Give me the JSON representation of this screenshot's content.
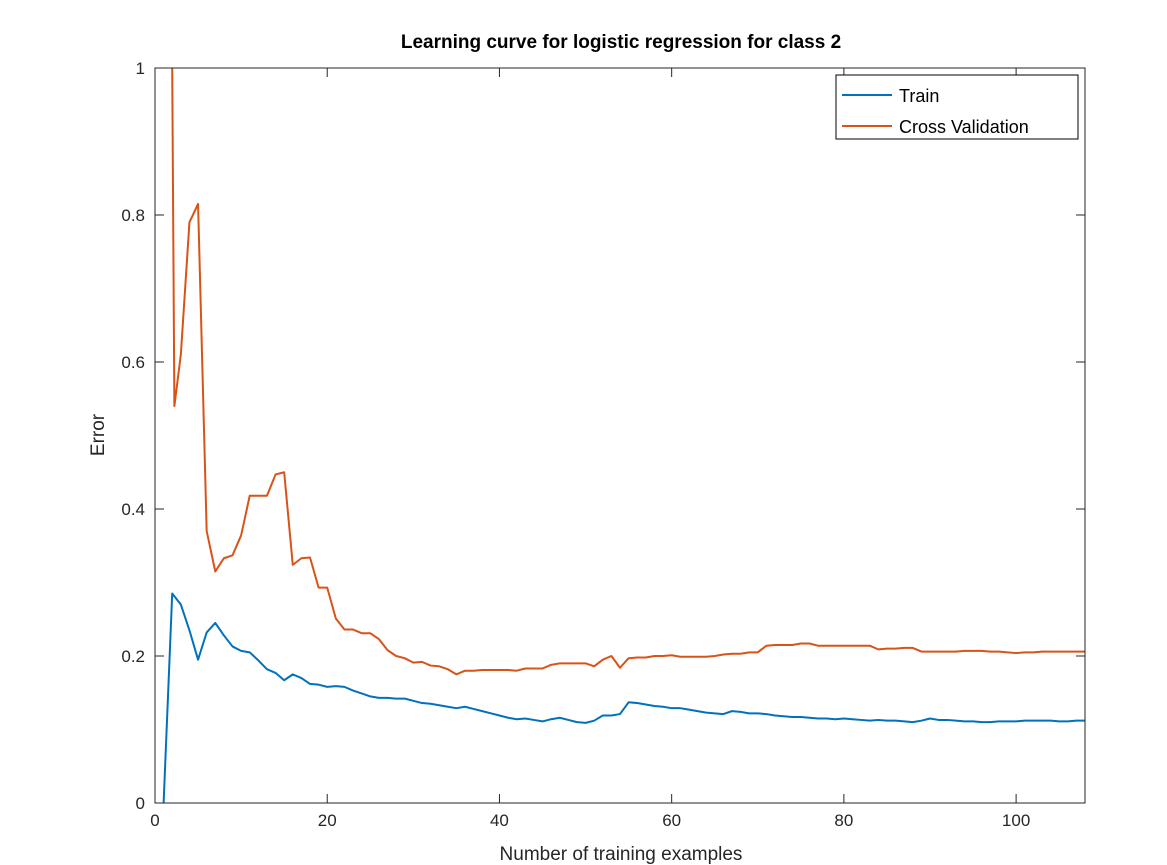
{
  "chart_data": {
    "type": "line",
    "title": "Learning curve for logistic regression for class 2",
    "xlabel": "Number of training examples",
    "ylabel": "Error",
    "xlim": [
      0,
      108
    ],
    "ylim": [
      0,
      1
    ],
    "xticks": [
      0,
      20,
      40,
      60,
      80,
      100
    ],
    "yticks": [
      0,
      0.2,
      0.4,
      0.6,
      0.8,
      1
    ],
    "ytick_labels": [
      "0",
      "0.2",
      "0.4",
      "0.6",
      "0.8",
      "1"
    ],
    "grid": false,
    "legend_position": "top-right",
    "series": [
      {
        "name": "Train",
        "color": "#0072BD",
        "x": [
          1,
          2,
          3,
          4,
          5,
          6,
          7,
          8,
          9,
          10,
          11,
          12,
          13,
          14,
          15,
          16,
          17,
          18,
          19,
          20,
          21,
          22,
          23,
          24,
          25,
          26,
          27,
          28,
          29,
          30,
          31,
          32,
          33,
          34,
          35,
          36,
          37,
          38,
          39,
          40,
          41,
          42,
          43,
          44,
          45,
          46,
          47,
          48,
          49,
          50,
          51,
          52,
          53,
          54,
          55,
          56,
          57,
          58,
          59,
          60,
          61,
          62,
          63,
          64,
          65,
          66,
          67,
          68,
          69,
          70,
          71,
          72,
          73,
          74,
          75,
          76,
          77,
          78,
          79,
          80,
          81,
          82,
          83,
          84,
          85,
          86,
          87,
          88,
          89,
          90,
          91,
          92,
          93,
          94,
          95,
          96,
          97,
          98,
          99,
          100,
          101,
          102,
          103,
          104,
          105,
          106,
          107,
          108
        ],
        "y": [
          0,
          0.285,
          0.27,
          0.235,
          0.195,
          0.232,
          0.245,
          0.228,
          0.213,
          0.207,
          0.205,
          0.194,
          0.182,
          0.177,
          0.167,
          0.175,
          0.17,
          0.162,
          0.161,
          0.158,
          0.159,
          0.158,
          0.153,
          0.149,
          0.145,
          0.143,
          0.143,
          0.142,
          0.142,
          0.139,
          0.136,
          0.135,
          0.133,
          0.131,
          0.129,
          0.131,
          0.128,
          0.125,
          0.122,
          0.119,
          0.116,
          0.114,
          0.115,
          0.113,
          0.111,
          0.114,
          0.116,
          0.113,
          0.11,
          0.109,
          0.112,
          0.119,
          0.119,
          0.121,
          0.137,
          0.136,
          0.134,
          0.132,
          0.131,
          0.129,
          0.129,
          0.127,
          0.125,
          0.123,
          0.122,
          0.121,
          0.125,
          0.124,
          0.122,
          0.122,
          0.121,
          0.119,
          0.118,
          0.117,
          0.117,
          0.116,
          0.115,
          0.115,
          0.114,
          0.115,
          0.114,
          0.113,
          0.112,
          0.113,
          0.112,
          0.112,
          0.111,
          0.11,
          0.112,
          0.115,
          0.113,
          0.113,
          0.112,
          0.111,
          0.111,
          0.11,
          0.11,
          0.111,
          0.111,
          0.111,
          0.112,
          0.112,
          0.112,
          0.112,
          0.111,
          0.111,
          0.112,
          0.112
        ]
      },
      {
        "name": "Cross Validation",
        "color": "#D95319",
        "x": [
          2,
          2.25,
          3,
          4,
          5,
          6,
          7,
          8,
          9,
          10,
          11,
          12,
          13,
          14,
          15,
          16,
          17,
          18,
          19,
          20,
          21,
          22,
          23,
          24,
          25,
          26,
          27,
          28,
          29,
          30,
          31,
          32,
          33,
          34,
          35,
          36,
          37,
          38,
          39,
          40,
          41,
          42,
          43,
          44,
          45,
          46,
          47,
          48,
          49,
          50,
          51,
          52,
          53,
          54,
          55,
          56,
          57,
          58,
          59,
          60,
          61,
          62,
          63,
          64,
          65,
          66,
          67,
          68,
          69,
          70,
          71,
          72,
          73,
          74,
          75,
          76,
          77,
          78,
          79,
          80,
          81,
          82,
          83,
          84,
          85,
          86,
          87,
          88,
          89,
          90,
          91,
          92,
          93,
          94,
          95,
          96,
          97,
          98,
          99,
          100,
          101,
          102,
          103,
          104,
          105,
          106,
          107,
          108
        ],
        "y": [
          1,
          0.54,
          0.61,
          0.79,
          0.815,
          0.37,
          0.315,
          0.333,
          0.337,
          0.364,
          0.418,
          0.418,
          0.418,
          0.447,
          0.45,
          0.324,
          0.333,
          0.334,
          0.293,
          0.293,
          0.251,
          0.236,
          0.236,
          0.231,
          0.231,
          0.223,
          0.208,
          0.2,
          0.197,
          0.191,
          0.192,
          0.187,
          0.186,
          0.182,
          0.175,
          0.18,
          0.18,
          0.181,
          0.181,
          0.181,
          0.181,
          0.18,
          0.183,
          0.183,
          0.183,
          0.188,
          0.19,
          0.19,
          0.19,
          0.19,
          0.186,
          0.195,
          0.2,
          0.184,
          0.197,
          0.198,
          0.198,
          0.2,
          0.2,
          0.201,
          0.199,
          0.199,
          0.199,
          0.199,
          0.2,
          0.202,
          0.203,
          0.203,
          0.205,
          0.205,
          0.214,
          0.215,
          0.215,
          0.215,
          0.217,
          0.217,
          0.214,
          0.214,
          0.214,
          0.214,
          0.214,
          0.214,
          0.214,
          0.209,
          0.21,
          0.21,
          0.211,
          0.211,
          0.206,
          0.206,
          0.206,
          0.206,
          0.206,
          0.207,
          0.207,
          0.207,
          0.206,
          0.206,
          0.205,
          0.204,
          0.205,
          0.205,
          0.206,
          0.206,
          0.206,
          0.206,
          0.206,
          0.206
        ]
      }
    ]
  }
}
